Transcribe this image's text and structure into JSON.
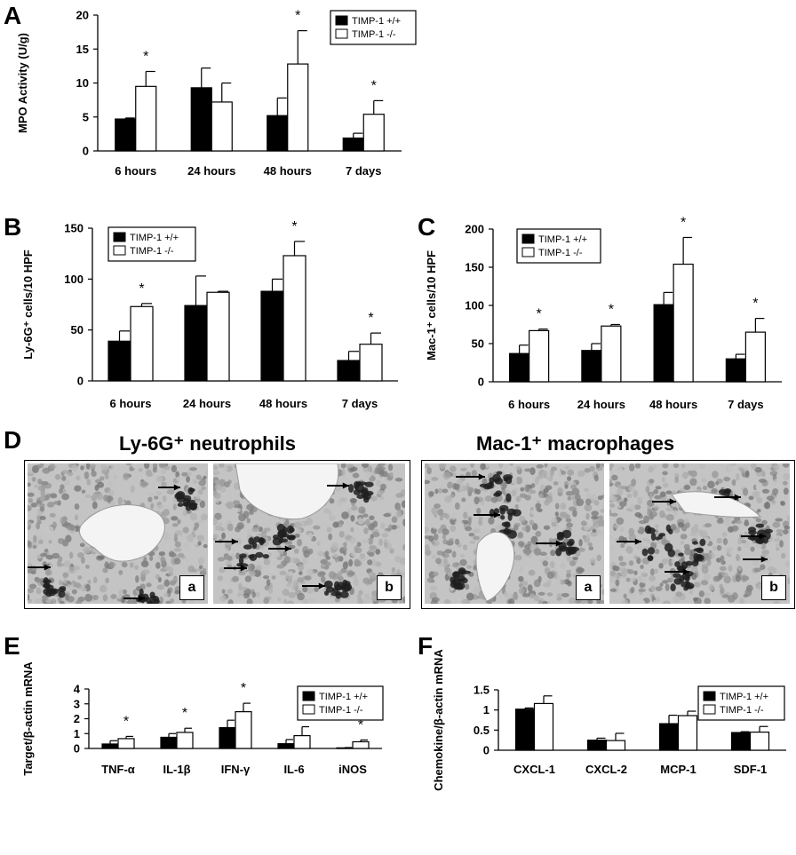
{
  "panels": {
    "A": "A",
    "B": "B",
    "C": "C",
    "D": "D",
    "E": "E",
    "F": "F"
  },
  "legend": {
    "wt": "TIMP-1 +/+",
    "ko": "TIMP-1 -/-"
  },
  "micro": {
    "left_title": "Ly-6G⁺ neutrophils",
    "right_title": "Mac-1⁺ macrophages",
    "label_a": "a",
    "label_b": "b"
  },
  "colors": {
    "wt": "#000000",
    "ko": "#ffffff",
    "stroke": "#000000"
  },
  "chart_data": [
    {
      "id": "A",
      "type": "bar",
      "categories": [
        "6 hours",
        "24 hours",
        "48 hours",
        "7 days"
      ],
      "series": [
        {
          "name": "TIMP-1 +/+",
          "values": [
            4.7,
            9.3,
            5.2,
            1.9
          ],
          "errors": [
            0.15,
            2.9,
            2.6,
            0.7
          ]
        },
        {
          "name": "TIMP-1 -/-",
          "values": [
            9.5,
            7.2,
            12.8,
            5.4
          ],
          "errors": [
            2.2,
            2.8,
            4.9,
            2.0
          ]
        }
      ],
      "significance": [
        "*",
        "",
        "*",
        "*"
      ],
      "ylabel": "MPO Activity (U/g)",
      "ylim": [
        0,
        20
      ],
      "yticks": [
        0,
        5,
        10,
        15,
        20
      ],
      "legend": "top-right"
    },
    {
      "id": "B",
      "type": "bar",
      "categories": [
        "6 hours",
        "24 hours",
        "48 hours",
        "7 days"
      ],
      "series": [
        {
          "name": "TIMP-1 +/+",
          "values": [
            39,
            74,
            88,
            20
          ],
          "errors": [
            10,
            29,
            12,
            9
          ]
        },
        {
          "name": "TIMP-1 -/-",
          "values": [
            73,
            87,
            123,
            36
          ],
          "errors": [
            3,
            1,
            14,
            11
          ]
        }
      ],
      "significance": [
        "*",
        "",
        "*",
        "*"
      ],
      "ylabel": "Ly-6G⁺ cells/10 HPF",
      "ylim": [
        0,
        150
      ],
      "yticks": [
        0,
        50,
        100,
        150
      ],
      "legend": "top-left"
    },
    {
      "id": "C",
      "type": "bar",
      "categories": [
        "6 hours",
        "24 hours",
        "48 hours",
        "7 days"
      ],
      "series": [
        {
          "name": "TIMP-1 +/+",
          "values": [
            37,
            41,
            101,
            30
          ],
          "errors": [
            11,
            9,
            16,
            6
          ]
        },
        {
          "name": "TIMP-1 -/-",
          "values": [
            67,
            73,
            154,
            65
          ],
          "errors": [
            2,
            2,
            35,
            18
          ]
        }
      ],
      "significance": [
        "*",
        "*",
        "*",
        "*"
      ],
      "ylabel": "Mac-1⁺ cells/10 HPF",
      "ylim": [
        0,
        200
      ],
      "yticks": [
        0,
        50,
        100,
        150,
        200
      ],
      "legend": "top-left"
    },
    {
      "id": "E",
      "type": "bar",
      "categories": [
        "TNF-α",
        "IL-1β",
        "IFN-γ",
        "IL-6",
        "iNOS"
      ],
      "series": [
        {
          "name": "TIMP-1 +/+",
          "values": [
            0.3,
            0.75,
            1.4,
            0.32,
            0.04
          ],
          "errors": [
            0.22,
            0.25,
            0.5,
            0.28,
            0.02
          ]
        },
        {
          "name": "TIMP-1 -/-",
          "values": [
            0.66,
            1.08,
            2.47,
            0.86,
            0.45
          ],
          "errors": [
            0.15,
            0.28,
            0.57,
            0.6,
            0.12
          ]
        }
      ],
      "significance": [
        "*",
        "*",
        "*",
        "",
        "*"
      ],
      "ylabel": "Target/β-actin mRNA",
      "ylim": [
        0,
        4
      ],
      "yticks": [
        0,
        1,
        2,
        3,
        4
      ],
      "legend": "top-right"
    },
    {
      "id": "F",
      "type": "bar",
      "categories": [
        "CXCL-1",
        "CXCL-2",
        "MCP-1",
        "SDF-1"
      ],
      "series": [
        {
          "name": "TIMP-1 +/+",
          "values": [
            1.02,
            0.25,
            0.66,
            0.44
          ],
          "errors": [
            0.03,
            0.05,
            0.21,
            0.02
          ]
        },
        {
          "name": "TIMP-1 -/-",
          "values": [
            1.16,
            0.24,
            0.86,
            0.45
          ],
          "errors": [
            0.19,
            0.18,
            0.11,
            0.14
          ]
        }
      ],
      "significance": [
        "",
        "",
        "",
        ""
      ],
      "ylabel": "Chemokine/β-actin mRNA",
      "ylim": [
        0,
        1.5
      ],
      "yticks": [
        0,
        0.5,
        1,
        1.5
      ],
      "yticklabels": [
        "0",
        "0.5",
        "1",
        "1.5"
      ],
      "legend": "top-right"
    }
  ]
}
